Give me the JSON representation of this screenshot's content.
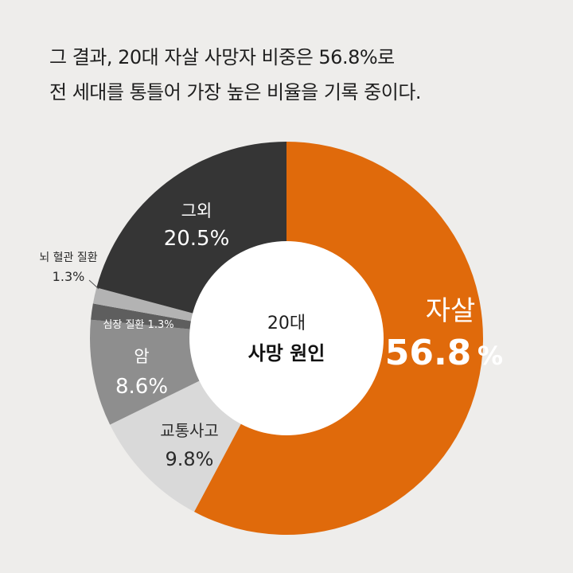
{
  "headline": {
    "line1": "그 결과, 20대 자살 사망자 비중은 56.8%로",
    "line2": "전 세대를 통틀어 가장 높은 비율을 기록 중이다."
  },
  "chart_data": {
    "type": "pie",
    "center_label": {
      "line1": "20대",
      "line2": "사망 원인"
    },
    "unit": "%",
    "slices": [
      {
        "label": "자살",
        "value": 56.8,
        "value_text": "56.8",
        "color": "#e06a0b",
        "text_color": "#ffffff"
      },
      {
        "label": "교통사고",
        "value": 9.8,
        "value_text": "9.8%",
        "color": "#d9d9d9",
        "text_color": "#2a2a2a"
      },
      {
        "label": "암",
        "value": 8.6,
        "value_text": "8.6%",
        "color": "#8e8e8e",
        "text_color": "#ffffff"
      },
      {
        "label": "심장 질환",
        "value": 1.3,
        "value_text": "1.3%",
        "color": "#5e5e5e",
        "text_color": "#ffffff"
      },
      {
        "label": "뇌 혈관 질환",
        "value": 1.3,
        "value_text": "1.3%",
        "color": "#b3b3b3",
        "text_color": "#2a2a2a"
      },
      {
        "label": "그외",
        "value": 20.5,
        "value_text": "20.5%",
        "color": "#353535",
        "text_color": "#ffffff"
      }
    ]
  }
}
